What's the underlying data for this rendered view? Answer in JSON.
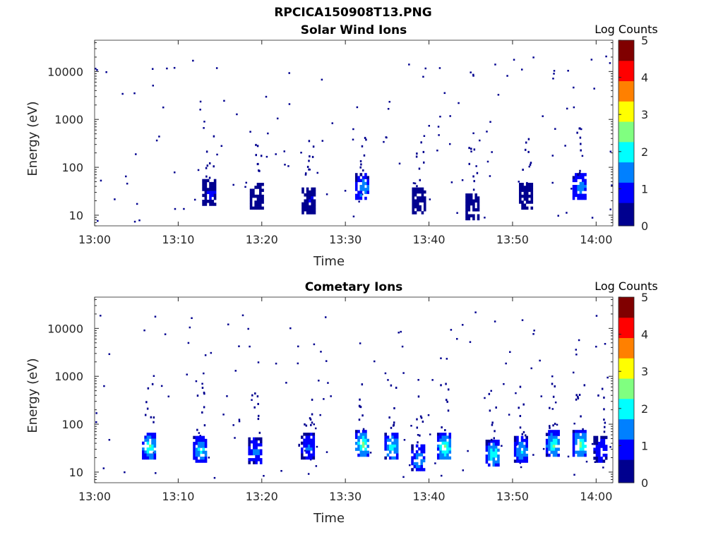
{
  "figure_title": "RPCICA150908T13.PNG",
  "colorbar_levels": [
    "#00008f",
    "#0000ff",
    "#0080ff",
    "#00ffff",
    "#80ff80",
    "#ffff00",
    "#ff8000",
    "#ff0000",
    "#800000"
  ],
  "chart_data": [
    {
      "type": "heatmap",
      "title": "Solar Wind Ions",
      "xlabel": "Time",
      "ylabel": "Energy (eV)",
      "xlim": [
        "13:00",
        "14:02"
      ],
      "ylim": [
        6,
        45000
      ],
      "yscale": "log",
      "xticks": [
        "13:00",
        "13:10",
        "13:20",
        "13:30",
        "13:40",
        "13:50",
        "14:00"
      ],
      "yticks": [
        "10",
        "100",
        "1000",
        "10000"
      ],
      "colorbar": {
        "label": "Log Counts",
        "range": [
          0,
          5
        ],
        "ticks": [
          "0",
          "1",
          "2",
          "3",
          "4",
          "5"
        ]
      },
      "blobs": [
        {
          "t": 13.7,
          "e": 30,
          "level": 0.5
        },
        {
          "t": 19.4,
          "e": 25,
          "level": 0.3
        },
        {
          "t": 25.6,
          "e": 20,
          "level": 0.4
        },
        {
          "t": 32.0,
          "e": 40,
          "level": 1.5
        },
        {
          "t": 38.8,
          "e": 20,
          "level": 0.3
        },
        {
          "t": 45.2,
          "e": 15,
          "level": 0.3
        },
        {
          "t": 51.6,
          "e": 25,
          "level": 0.3
        },
        {
          "t": 58.0,
          "e": 40,
          "level": 1.6
        }
      ]
    },
    {
      "type": "heatmap",
      "title": "Cometary Ions",
      "xlabel": "Time",
      "ylabel": "Energy (eV)",
      "xlim": [
        "13:00",
        "14:02"
      ],
      "ylim": [
        6,
        45000
      ],
      "yscale": "log",
      "xticks": [
        "13:00",
        "13:10",
        "13:20",
        "13:30",
        "13:40",
        "13:50",
        "14:00"
      ],
      "yticks": [
        "10",
        "100",
        "1000",
        "10000"
      ],
      "colorbar": {
        "label": "Log Counts",
        "range": [
          0,
          5
        ],
        "ticks": [
          "0",
          "1",
          "2",
          "3",
          "4",
          "5"
        ]
      },
      "blobs": [
        {
          "t": 6.5,
          "e": 35,
          "level": 2.2
        },
        {
          "t": 12.6,
          "e": 30,
          "level": 1.8
        },
        {
          "t": 19.2,
          "e": 28,
          "level": 1.2
        },
        {
          "t": 25.5,
          "e": 35,
          "level": 1.2
        },
        {
          "t": 32.0,
          "e": 40,
          "level": 2.4
        },
        {
          "t": 35.5,
          "e": 35,
          "level": 2.0
        },
        {
          "t": 38.7,
          "e": 20,
          "level": 1.6
        },
        {
          "t": 41.8,
          "e": 35,
          "level": 2.4
        },
        {
          "t": 47.6,
          "e": 25,
          "level": 2.0
        },
        {
          "t": 51.0,
          "e": 30,
          "level": 1.8
        },
        {
          "t": 54.8,
          "e": 40,
          "level": 2.2
        },
        {
          "t": 58.0,
          "e": 40,
          "level": 2.4
        },
        {
          "t": 60.5,
          "e": 30,
          "level": 1.0
        }
      ]
    }
  ]
}
